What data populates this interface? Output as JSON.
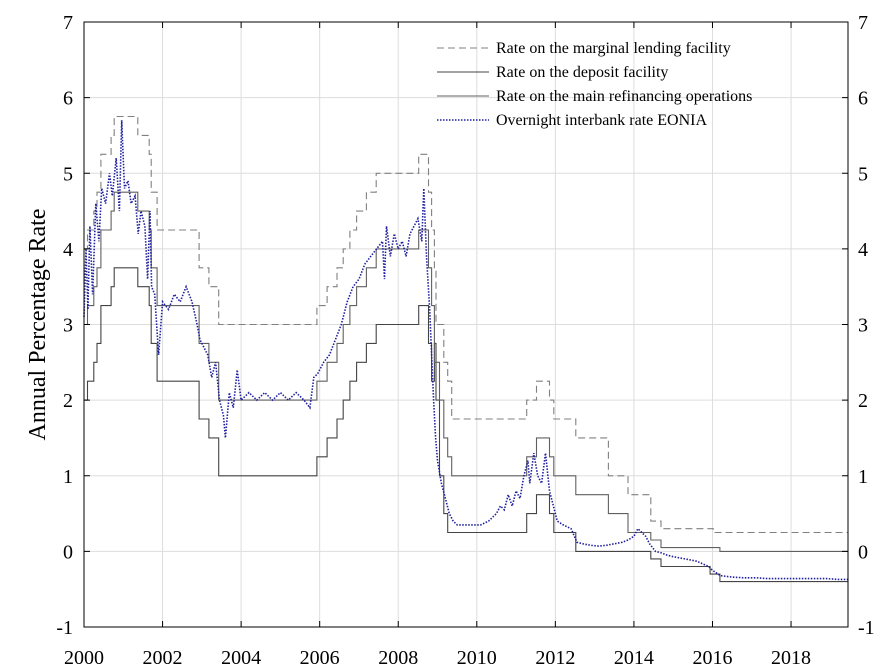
{
  "chart_data": {
    "type": "line",
    "title": "",
    "xlabel": "",
    "ylabel": "Annual Percentage Rate",
    "xlim": [
      2000,
      2019.45
    ],
    "ylim": [
      -1,
      7
    ],
    "x_ticks": [
      2000,
      2002,
      2004,
      2006,
      2008,
      2010,
      2012,
      2014,
      2016,
      2018
    ],
    "y_ticks": [
      -1,
      0,
      1,
      2,
      3,
      4,
      5,
      6,
      7
    ],
    "grid": true,
    "legend_position": "top-right",
    "series": [
      {
        "name": "Rate on the marginal lending facility",
        "color": "#808080",
        "dash": "dashed",
        "points": [
          [
            2000,
            4.0
          ],
          [
            2000.09,
            4.25
          ],
          [
            2000.25,
            4.5
          ],
          [
            2000.33,
            4.75
          ],
          [
            2000.43,
            5.25
          ],
          [
            2000.69,
            5.5
          ],
          [
            2000.77,
            5.75
          ],
          [
            2001.37,
            5.5
          ],
          [
            2001.66,
            5.25
          ],
          [
            2001.71,
            4.75
          ],
          [
            2001.86,
            4.25
          ],
          [
            2002.93,
            3.75
          ],
          [
            2003.18,
            3.5
          ],
          [
            2003.43,
            3.0
          ],
          [
            2005.93,
            3.25
          ],
          [
            2006.19,
            3.5
          ],
          [
            2006.44,
            3.75
          ],
          [
            2006.6,
            4.0
          ],
          [
            2006.77,
            4.25
          ],
          [
            2006.94,
            4.5
          ],
          [
            2007.19,
            4.75
          ],
          [
            2007.44,
            5.0
          ],
          [
            2008.52,
            5.25
          ],
          [
            2008.77,
            4.75
          ],
          [
            2008.85,
            4.25
          ],
          [
            2008.92,
            3.75
          ],
          [
            2008.96,
            3.0
          ],
          [
            2009.05,
            3.0
          ],
          [
            2009.16,
            2.5
          ],
          [
            2009.26,
            2.25
          ],
          [
            2009.36,
            1.75
          ],
          [
            2011.27,
            2.0
          ],
          [
            2011.52,
            2.25
          ],
          [
            2011.85,
            2.0
          ],
          [
            2011.96,
            1.75
          ],
          [
            2012.52,
            1.5
          ],
          [
            2013.35,
            1.0
          ],
          [
            2013.85,
            0.75
          ],
          [
            2014.43,
            0.4
          ],
          [
            2014.69,
            0.3
          ],
          [
            2015.94,
            0.3
          ],
          [
            2016.02,
            0.25
          ],
          [
            2019.45,
            0.25
          ]
        ]
      },
      {
        "name": "Rate on the deposit facility",
        "color": "#444444",
        "dash": "solid",
        "points": [
          [
            2000,
            2.0
          ],
          [
            2000.09,
            2.25
          ],
          [
            2000.25,
            2.5
          ],
          [
            2000.33,
            2.75
          ],
          [
            2000.43,
            3.25
          ],
          [
            2000.69,
            3.5
          ],
          [
            2000.77,
            3.75
          ],
          [
            2001.37,
            3.5
          ],
          [
            2001.66,
            3.25
          ],
          [
            2001.71,
            2.75
          ],
          [
            2001.86,
            2.25
          ],
          [
            2002.93,
            1.75
          ],
          [
            2003.18,
            1.5
          ],
          [
            2003.43,
            1.0
          ],
          [
            2005.93,
            1.25
          ],
          [
            2006.19,
            1.5
          ],
          [
            2006.44,
            1.75
          ],
          [
            2006.6,
            2.0
          ],
          [
            2006.77,
            2.25
          ],
          [
            2006.94,
            2.5
          ],
          [
            2007.19,
            2.75
          ],
          [
            2007.44,
            3.0
          ],
          [
            2008.52,
            3.25
          ],
          [
            2008.77,
            2.75
          ],
          [
            2008.85,
            2.25
          ],
          [
            2008.92,
            2.75
          ],
          [
            2008.96,
            2.0
          ],
          [
            2009.05,
            1.0
          ],
          [
            2009.16,
            0.5
          ],
          [
            2009.26,
            0.25
          ],
          [
            2011.27,
            0.5
          ],
          [
            2011.52,
            0.75
          ],
          [
            2011.85,
            0.5
          ],
          [
            2011.96,
            0.25
          ],
          [
            2012.52,
            0.0
          ],
          [
            2014.43,
            -0.1
          ],
          [
            2014.69,
            -0.2
          ],
          [
            2015.94,
            -0.3
          ],
          [
            2016.19,
            -0.4
          ],
          [
            2019.45,
            -0.4
          ]
        ]
      },
      {
        "name": "Rate on the main refinancing operations",
        "color": "#606060",
        "dash": "solid",
        "points": [
          [
            2000,
            3.0
          ],
          [
            2000.09,
            3.25
          ],
          [
            2000.25,
            3.5
          ],
          [
            2000.33,
            3.75
          ],
          [
            2000.43,
            4.25
          ],
          [
            2000.69,
            4.5
          ],
          [
            2000.77,
            4.75
          ],
          [
            2001.37,
            4.5
          ],
          [
            2001.66,
            4.25
          ],
          [
            2001.71,
            3.75
          ],
          [
            2001.86,
            3.25
          ],
          [
            2002.93,
            2.75
          ],
          [
            2003.18,
            2.5
          ],
          [
            2003.43,
            2.0
          ],
          [
            2005.93,
            2.25
          ],
          [
            2006.19,
            2.5
          ],
          [
            2006.44,
            2.75
          ],
          [
            2006.6,
            3.0
          ],
          [
            2006.77,
            3.25
          ],
          [
            2006.94,
            3.5
          ],
          [
            2007.19,
            3.75
          ],
          [
            2007.44,
            4.0
          ],
          [
            2008.52,
            4.25
          ],
          [
            2008.77,
            3.75
          ],
          [
            2008.85,
            3.25
          ],
          [
            2008.92,
            2.5
          ],
          [
            2009.05,
            2.0
          ],
          [
            2009.16,
            1.5
          ],
          [
            2009.26,
            1.25
          ],
          [
            2009.36,
            1.0
          ],
          [
            2011.27,
            1.25
          ],
          [
            2011.52,
            1.5
          ],
          [
            2011.85,
            1.25
          ],
          [
            2011.96,
            1.0
          ],
          [
            2012.52,
            0.75
          ],
          [
            2013.35,
            0.5
          ],
          [
            2013.85,
            0.25
          ],
          [
            2014.43,
            0.15
          ],
          [
            2014.69,
            0.05
          ],
          [
            2016.19,
            0.0
          ],
          [
            2019.45,
            0.0
          ]
        ]
      },
      {
        "name": "Overnight interbank rate EONIA",
        "color": "#1f1f9f",
        "dash": "dotted",
        "points": [
          [
            2000,
            3.1
          ],
          [
            2000.05,
            4.0
          ],
          [
            2000.1,
            3.2
          ],
          [
            2000.15,
            4.3
          ],
          [
            2000.22,
            3.4
          ],
          [
            2000.3,
            4.6
          ],
          [
            2000.38,
            4.1
          ],
          [
            2000.45,
            4.8
          ],
          [
            2000.55,
            4.6
          ],
          [
            2000.65,
            5.0
          ],
          [
            2000.72,
            4.7
          ],
          [
            2000.82,
            5.2
          ],
          [
            2000.9,
            4.5
          ],
          [
            2000.96,
            5.7
          ],
          [
            2001.03,
            4.8
          ],
          [
            2001.12,
            4.9
          ],
          [
            2001.2,
            4.6
          ],
          [
            2001.3,
            4.7
          ],
          [
            2001.38,
            4.2
          ],
          [
            2001.45,
            4.5
          ],
          [
            2001.55,
            4.3
          ],
          [
            2001.62,
            3.6
          ],
          [
            2001.68,
            4.5
          ],
          [
            2001.72,
            3.5
          ],
          [
            2001.8,
            3.4
          ],
          [
            2001.9,
            2.6
          ],
          [
            2002.0,
            3.3
          ],
          [
            2002.15,
            3.2
          ],
          [
            2002.3,
            3.4
          ],
          [
            2002.45,
            3.3
          ],
          [
            2002.6,
            3.5
          ],
          [
            2002.75,
            3.3
          ],
          [
            2002.88,
            3.0
          ],
          [
            2002.95,
            2.8
          ],
          [
            2003.05,
            2.7
          ],
          [
            2003.15,
            2.6
          ],
          [
            2003.25,
            2.3
          ],
          [
            2003.35,
            2.5
          ],
          [
            2003.45,
            2.0
          ],
          [
            2003.55,
            1.8
          ],
          [
            2003.6,
            1.5
          ],
          [
            2003.7,
            2.1
          ],
          [
            2003.8,
            1.9
          ],
          [
            2003.9,
            2.4
          ],
          [
            2004.0,
            2.0
          ],
          [
            2004.2,
            2.1
          ],
          [
            2004.4,
            2.0
          ],
          [
            2004.6,
            2.1
          ],
          [
            2004.8,
            2.0
          ],
          [
            2005.0,
            2.1
          ],
          [
            2005.2,
            2.0
          ],
          [
            2005.4,
            2.1
          ],
          [
            2005.6,
            2.0
          ],
          [
            2005.75,
            1.9
          ],
          [
            2005.85,
            2.3
          ],
          [
            2005.95,
            2.35
          ],
          [
            2006.1,
            2.5
          ],
          [
            2006.25,
            2.6
          ],
          [
            2006.4,
            2.8
          ],
          [
            2006.55,
            3.0
          ],
          [
            2006.7,
            3.3
          ],
          [
            2006.85,
            3.5
          ],
          [
            2007.0,
            3.6
          ],
          [
            2007.15,
            3.8
          ],
          [
            2007.3,
            3.9
          ],
          [
            2007.45,
            4.0
          ],
          [
            2007.6,
            4.1
          ],
          [
            2007.65,
            3.6
          ],
          [
            2007.7,
            4.3
          ],
          [
            2007.8,
            3.9
          ],
          [
            2007.9,
            4.2
          ],
          [
            2008.0,
            4.0
          ],
          [
            2008.1,
            4.1
          ],
          [
            2008.2,
            3.9
          ],
          [
            2008.3,
            4.2
          ],
          [
            2008.4,
            4.3
          ],
          [
            2008.5,
            4.4
          ],
          [
            2008.6,
            4.1
          ],
          [
            2008.65,
            4.8
          ],
          [
            2008.72,
            3.9
          ],
          [
            2008.8,
            3.2
          ],
          [
            2008.85,
            2.6
          ],
          [
            2008.9,
            2.0
          ],
          [
            2008.95,
            1.5
          ],
          [
            2009.0,
            1.2
          ],
          [
            2009.1,
            0.9
          ],
          [
            2009.2,
            0.7
          ],
          [
            2009.3,
            0.5
          ],
          [
            2009.4,
            0.4
          ],
          [
            2009.5,
            0.35
          ],
          [
            2009.7,
            0.35
          ],
          [
            2009.9,
            0.35
          ],
          [
            2010.1,
            0.35
          ],
          [
            2010.3,
            0.4
          ],
          [
            2010.5,
            0.5
          ],
          [
            2010.6,
            0.6
          ],
          [
            2010.7,
            0.55
          ],
          [
            2010.8,
            0.75
          ],
          [
            2010.9,
            0.6
          ],
          [
            2011.0,
            0.8
          ],
          [
            2011.1,
            0.7
          ],
          [
            2011.2,
            1.0
          ],
          [
            2011.3,
            1.2
          ],
          [
            2011.35,
            0.9
          ],
          [
            2011.45,
            1.3
          ],
          [
            2011.55,
            1.0
          ],
          [
            2011.65,
            0.9
          ],
          [
            2011.75,
            1.3
          ],
          [
            2011.85,
            0.8
          ],
          [
            2011.95,
            0.6
          ],
          [
            2012.05,
            0.4
          ],
          [
            2012.2,
            0.35
          ],
          [
            2012.4,
            0.3
          ],
          [
            2012.55,
            0.12
          ],
          [
            2012.7,
            0.1
          ],
          [
            2012.9,
            0.08
          ],
          [
            2013.1,
            0.07
          ],
          [
            2013.3,
            0.08
          ],
          [
            2013.5,
            0.1
          ],
          [
            2013.7,
            0.12
          ],
          [
            2013.85,
            0.15
          ],
          [
            2014.0,
            0.2
          ],
          [
            2014.1,
            0.3
          ],
          [
            2014.2,
            0.25
          ],
          [
            2014.3,
            0.2
          ],
          [
            2014.4,
            0.1
          ],
          [
            2014.55,
            0.0
          ],
          [
            2014.7,
            -0.02
          ],
          [
            2014.85,
            -0.05
          ],
          [
            2015.0,
            -0.07
          ],
          [
            2015.3,
            -0.1
          ],
          [
            2015.6,
            -0.13
          ],
          [
            2015.9,
            -0.2
          ],
          [
            2016.0,
            -0.25
          ],
          [
            2016.2,
            -0.32
          ],
          [
            2016.5,
            -0.34
          ],
          [
            2016.8,
            -0.35
          ],
          [
            2017.1,
            -0.35
          ],
          [
            2017.4,
            -0.36
          ],
          [
            2017.7,
            -0.36
          ],
          [
            2018.0,
            -0.36
          ],
          [
            2018.3,
            -0.36
          ],
          [
            2018.6,
            -0.36
          ],
          [
            2018.9,
            -0.36
          ],
          [
            2019.2,
            -0.37
          ],
          [
            2019.45,
            -0.37
          ]
        ]
      }
    ]
  }
}
